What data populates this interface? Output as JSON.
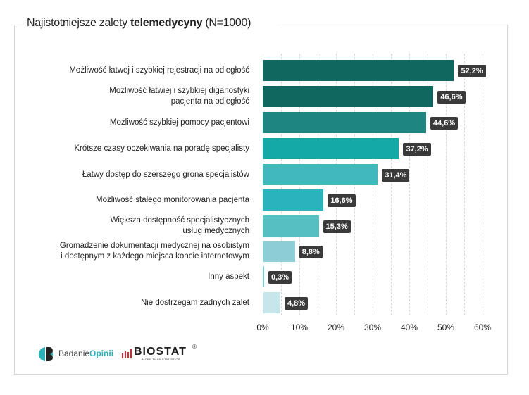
{
  "title": {
    "prefix": "Najistotniejsze zalety ",
    "bold": "telemedycyny",
    "suffix": " (N=1000)"
  },
  "chart_data": {
    "type": "bar",
    "orientation": "horizontal",
    "title": "Najistotniejsze zalety telemedycyny (N=1000)",
    "xlabel": "",
    "ylabel": "",
    "xlim": [
      0,
      60
    ],
    "x_ticks": [
      "0%",
      "10%",
      "20%",
      "30%",
      "40%",
      "50%",
      "60%"
    ],
    "grid": "vertical dashed every 5%",
    "categories": [
      "Możliwość łatwej i szybkiej rejestracji na odległość",
      "Możliwość łatwiej i szybkiej diganostyki pacjenta na odległość",
      "Możliwość szybkiej pomocy pacjentowi",
      "Krótsze czasy oczekiwania na poradę specjalisty",
      "Łatwy dostęp do szerszego grona specjalistów",
      "Możliwość stałego monitorowania pacjenta",
      "Większa dostępność specjalistycznych usług medycznych",
      "Gromadzenie dokumentacji medycznej na osobistym i dostępnym z każdego miejsca koncie internetowym",
      "Inny aspekt",
      "Nie dostrzegam żadnych zalet"
    ],
    "values": [
      52.2,
      46.6,
      44.6,
      37.2,
      31.4,
      16.6,
      15.3,
      8.8,
      0.3,
      4.8
    ],
    "value_labels": [
      "52,2%",
      "46,6%",
      "44,6%",
      "37,2%",
      "31,4%",
      "16,6%",
      "15,3%",
      "8,8%",
      "0,3%",
      "4,8%"
    ],
    "colors": [
      "#10675f",
      "#10675f",
      "#1e8580",
      "#14a8a6",
      "#40b8bc",
      "#2ab3bd",
      "#55bfc1",
      "#8ccdd6",
      "#7ccad6",
      "#c6e6ec"
    ]
  },
  "rows": [
    {
      "line1": "Możliwość łatwej i szybkiej rejestracji na odległość",
      "line2": "",
      "value": 52.2,
      "label": "52,2%",
      "color": "#10675f"
    },
    {
      "line1": "Możliwość łatwiej i szybkiej diganostyki",
      "line2": "pacjenta na odległość",
      "value": 46.6,
      "label": "46,6%",
      "color": "#10675f"
    },
    {
      "line1": "Możliwość szybkiej pomocy pacjentowi",
      "line2": "",
      "value": 44.6,
      "label": "44,6%",
      "color": "#1e8580"
    },
    {
      "line1": "Krótsze czasy oczekiwania na poradę specjalisty",
      "line2": "",
      "value": 37.2,
      "label": "37,2%",
      "color": "#14a8a6"
    },
    {
      "line1": "Łatwy dostęp do szerszego grona specjalistów",
      "line2": "",
      "value": 31.4,
      "label": "31,4%",
      "color": "#40b8bc"
    },
    {
      "line1": "Możliwość stałego monitorowania pacjenta",
      "line2": "",
      "value": 16.6,
      "label": "16,6%",
      "color": "#2ab3bd"
    },
    {
      "line1": "Większa dostępność specjalistycznych",
      "line2": "usług medycznych",
      "value": 15.3,
      "label": "15,3%",
      "color": "#55bfc1"
    },
    {
      "line1": "Gromadzenie dokumentacji medycznej na osobistym",
      "line2": "i dostępnym z każdego miejsca koncie internetowym",
      "value": 8.8,
      "label": "8,8%",
      "color": "#8ccdd6"
    },
    {
      "line1": "Inny aspekt",
      "line2": "",
      "value": 0.3,
      "label": "0,3%",
      "color": "#7ccad6"
    },
    {
      "line1": "Nie dostrzegam żadnych zalet",
      "line2": "",
      "value": 4.8,
      "label": "4,8%",
      "color": "#c6e6ec"
    }
  ],
  "axis": {
    "ticks": [
      "0%",
      "10%",
      "20%",
      "30%",
      "40%",
      "50%",
      "60%"
    ]
  },
  "logos": {
    "badanie_prefix": "Badanie",
    "badanie_bold": "Opinii",
    "biostat": "BIOSTAT",
    "biostat_reg": "®",
    "biostat_tagline": "MORE THAN STATISTICS"
  }
}
